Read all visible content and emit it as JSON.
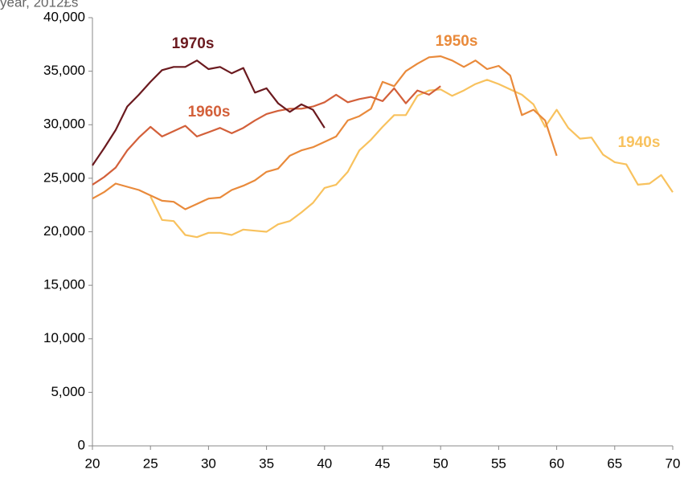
{
  "chart_data": {
    "type": "line",
    "y_label": "year, 2012£s",
    "xlim": [
      20,
      70
    ],
    "xticks": [
      20,
      25,
      30,
      35,
      40,
      45,
      50,
      55,
      60,
      65,
      70
    ],
    "ylim": [
      0,
      40000
    ],
    "yticks": [
      0,
      {
        "value": 5000,
        "label": "5,000"
      },
      {
        "value": 10000,
        "label": "10,000"
      },
      {
        "value": 15000,
        "label": "15,000"
      },
      {
        "value": 20000,
        "label": "20,000"
      },
      {
        "value": 25000,
        "label": "25,000"
      },
      {
        "value": 30000,
        "label": "30,000"
      },
      {
        "value": 35000,
        "label": "35,000"
      },
      {
        "value": 40000,
        "label": "40,000"
      }
    ],
    "series": [
      {
        "name": "1970s",
        "color": "#6b1a1f",
        "x": [
          20,
          21,
          22,
          23,
          24,
          25,
          26,
          27,
          28,
          29,
          30,
          31,
          32,
          33,
          34,
          35,
          36,
          37,
          38,
          39,
          40
        ],
        "values": [
          26200,
          27800,
          29500,
          31700,
          32800,
          34000,
          35100,
          35400,
          35400,
          36000,
          35200,
          35400,
          34800,
          35300,
          33000,
          33400,
          32000,
          31200,
          31900,
          31400,
          29700
        ]
      },
      {
        "name": "1960s",
        "color": "#d3603a",
        "x": [
          20,
          21,
          22,
          23,
          24,
          25,
          26,
          27,
          28,
          29,
          30,
          31,
          32,
          33,
          34,
          35,
          36,
          37,
          38,
          39,
          40,
          41,
          42,
          43,
          44,
          45,
          46,
          47,
          48,
          49,
          50
        ],
        "values": [
          24400,
          25100,
          26000,
          27600,
          28800,
          29800,
          28900,
          29400,
          29900,
          28900,
          29300,
          29700,
          29200,
          29700,
          30400,
          31000,
          31300,
          31500,
          31500,
          31700,
          32100,
          32800,
          32100,
          32400,
          32600,
          32200,
          33400,
          32000,
          33200,
          32800,
          33600
        ]
      },
      {
        "name": "1950s",
        "color": "#e98a3b",
        "x": [
          20,
          21,
          22,
          23,
          24,
          25,
          26,
          27,
          28,
          29,
          30,
          31,
          32,
          33,
          34,
          35,
          36,
          37,
          38,
          39,
          40,
          41,
          42,
          43,
          44,
          45,
          46,
          47,
          48,
          49,
          50,
          51,
          52,
          53,
          54,
          55,
          56,
          57,
          58,
          59,
          60
        ],
        "values": [
          23100,
          23700,
          24500,
          24200,
          23900,
          23400,
          22900,
          22800,
          22100,
          22600,
          23100,
          23200,
          23900,
          24300,
          24800,
          25600,
          25900,
          27100,
          27600,
          27900,
          28400,
          28900,
          30400,
          30800,
          31500,
          34000,
          33600,
          35000,
          35700,
          36300,
          36400,
          36000,
          35400,
          36000,
          35200,
          35500,
          34600,
          30900,
          31400,
          30400,
          27100
        ]
      },
      {
        "name": "1940s",
        "color": "#f8c25e",
        "x": [
          25,
          26,
          27,
          28,
          29,
          30,
          31,
          32,
          33,
          34,
          35,
          36,
          37,
          38,
          39,
          40,
          41,
          42,
          43,
          44,
          45,
          46,
          47,
          48,
          49,
          50,
          51,
          52,
          53,
          54,
          55,
          56,
          57,
          58,
          59,
          60,
          61,
          62,
          63,
          64,
          65,
          66,
          67,
          68,
          69,
          70
        ],
        "values": [
          23300,
          21100,
          21000,
          19700,
          19500,
          19900,
          19900,
          19700,
          20200,
          20100,
          20000,
          20700,
          21000,
          21800,
          22700,
          24100,
          24400,
          25600,
          27600,
          28600,
          29800,
          30900,
          30900,
          32700,
          33200,
          33300,
          32700,
          33200,
          33800,
          34200,
          33800,
          33300,
          32800,
          31900,
          29800,
          31400,
          29700,
          28700,
          28800,
          27200,
          26500,
          26300,
          24400,
          24500,
          25300,
          23700
        ]
      }
    ]
  }
}
